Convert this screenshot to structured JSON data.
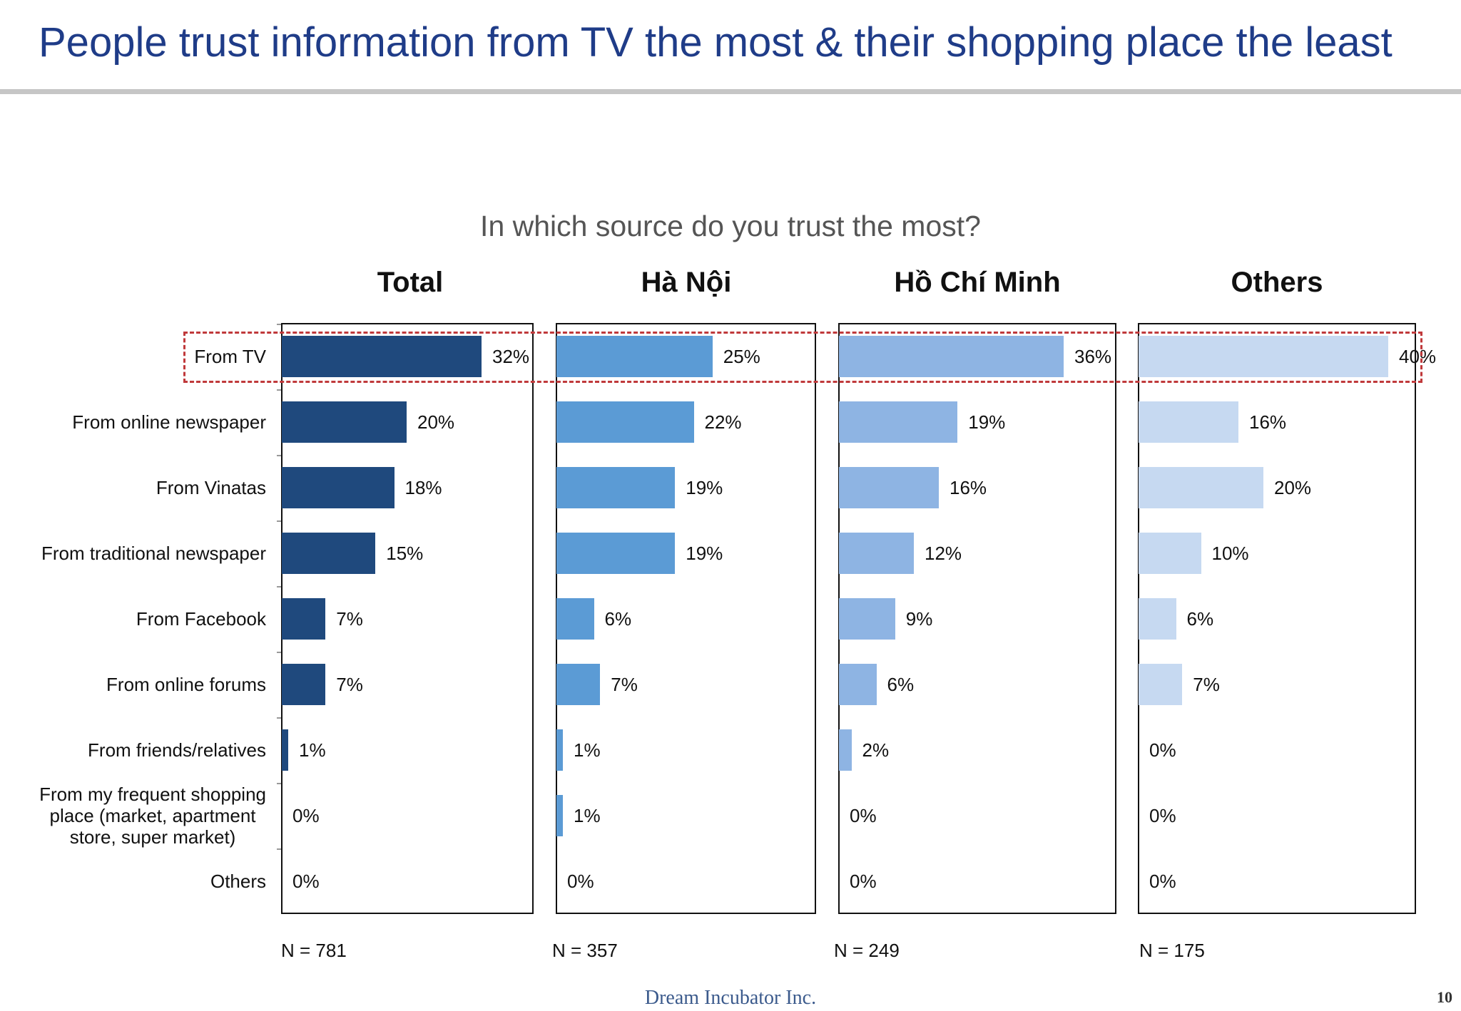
{
  "slide": {
    "title": "People trust information from TV the most & their shopping place the least",
    "footer_brand": "Dream Incubator Inc.",
    "page_number": "10",
    "highlight_color": "#c0393b"
  },
  "chart_data": {
    "type": "bar",
    "orientation": "horizontal",
    "title": "In which source do you trust the most?",
    "categories": [
      "From TV",
      "From online newspaper",
      "From Vinatas",
      "From traditional newspaper",
      "From Facebook",
      "From online forums",
      "From friends/relatives",
      "From my frequent shopping place (market, apartment store, super market)",
      "Others"
    ],
    "category_lines": [
      [
        "From TV"
      ],
      [
        "From online newspaper"
      ],
      [
        "From Vinatas"
      ],
      [
        "From traditional newspaper"
      ],
      [
        "From Facebook"
      ],
      [
        "From online forums"
      ],
      [
        "From friends/relatives"
      ],
      [
        "From my frequent shopping",
        "place (market, apartment",
        "store, super market)"
      ],
      [
        "Others"
      ]
    ],
    "unit": "%",
    "panels": [
      {
        "name": "Total",
        "n": "N = 781",
        "color": "#1f497d",
        "values": [
          32,
          20,
          18,
          15,
          7,
          7,
          1,
          0,
          0
        ],
        "labels": [
          "32%",
          "20%",
          "18%",
          "15%",
          "7%",
          "7%",
          "1%",
          "0%",
          "0%"
        ]
      },
      {
        "name": "Hà Nội",
        "n": "N = 357",
        "color": "#5b9bd5",
        "values": [
          25,
          22,
          19,
          19,
          6,
          7,
          1,
          1,
          0
        ],
        "labels": [
          "25%",
          "22%",
          "19%",
          "19%",
          "6%",
          "7%",
          "1%",
          "1%",
          "0%"
        ]
      },
      {
        "name": "Hồ Chí Minh",
        "n": "N = 249",
        "color": "#8eb4e3",
        "values": [
          36,
          19,
          16,
          12,
          9,
          6,
          2,
          0,
          0
        ],
        "labels": [
          "36%",
          "19%",
          "16%",
          "12%",
          "9%",
          "6%",
          "2%",
          "0%",
          "0%"
        ]
      },
      {
        "name": "Others",
        "n": "N = 175",
        "color": "#c6d9f1",
        "values": [
          40,
          16,
          20,
          10,
          6,
          7,
          0,
          0,
          0
        ],
        "labels": [
          "40%",
          "16%",
          "20%",
          "10%",
          "6%",
          "7%",
          "0%",
          "0%",
          "0%"
        ]
      }
    ],
    "highlighted_category": "From TV"
  }
}
